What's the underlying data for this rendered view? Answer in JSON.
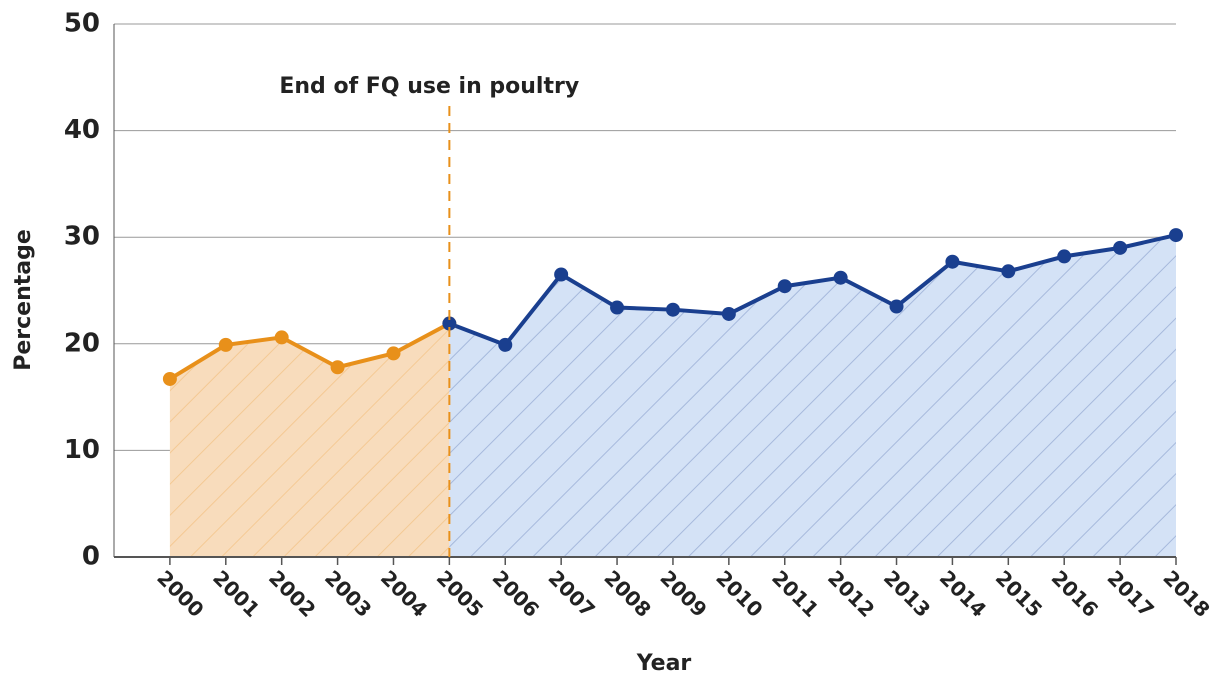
{
  "chart_data": {
    "type": "line",
    "xlabel": "Year",
    "ylabel": "Percentage",
    "xlim": [
      1999,
      2018
    ],
    "ylim": [
      0,
      50
    ],
    "xticks": [
      2000,
      2001,
      2002,
      2003,
      2004,
      2005,
      2006,
      2007,
      2008,
      2009,
      2010,
      2011,
      2012,
      2013,
      2014,
      2015,
      2016,
      2017,
      2018
    ],
    "yticks": [
      0,
      10,
      20,
      30,
      40,
      50
    ],
    "grid": true,
    "annotation": {
      "text": "End of FQ use in poultry",
      "x": 2005,
      "color": "#e8901a"
    },
    "series": [
      {
        "color": "#e8901a",
        "fill": "#f8dcbc",
        "x": [
          2000,
          2001,
          2002,
          2003,
          2004,
          2005
        ],
        "values": [
          16.7,
          19.9,
          20.6,
          17.8,
          19.1,
          21.9
        ]
      },
      {
        "color": "#1a3f8f",
        "fill": "#d4e2f6",
        "x": [
          2005,
          2006,
          2007,
          2008,
          2009,
          2010,
          2011,
          2012,
          2013,
          2014,
          2015,
          2016,
          2017,
          2018
        ],
        "values": [
          21.9,
          19.9,
          26.5,
          23.4,
          23.2,
          22.8,
          25.4,
          26.2,
          23.5,
          27.7,
          26.8,
          28.2,
          29.0,
          30.2
        ]
      }
    ]
  }
}
